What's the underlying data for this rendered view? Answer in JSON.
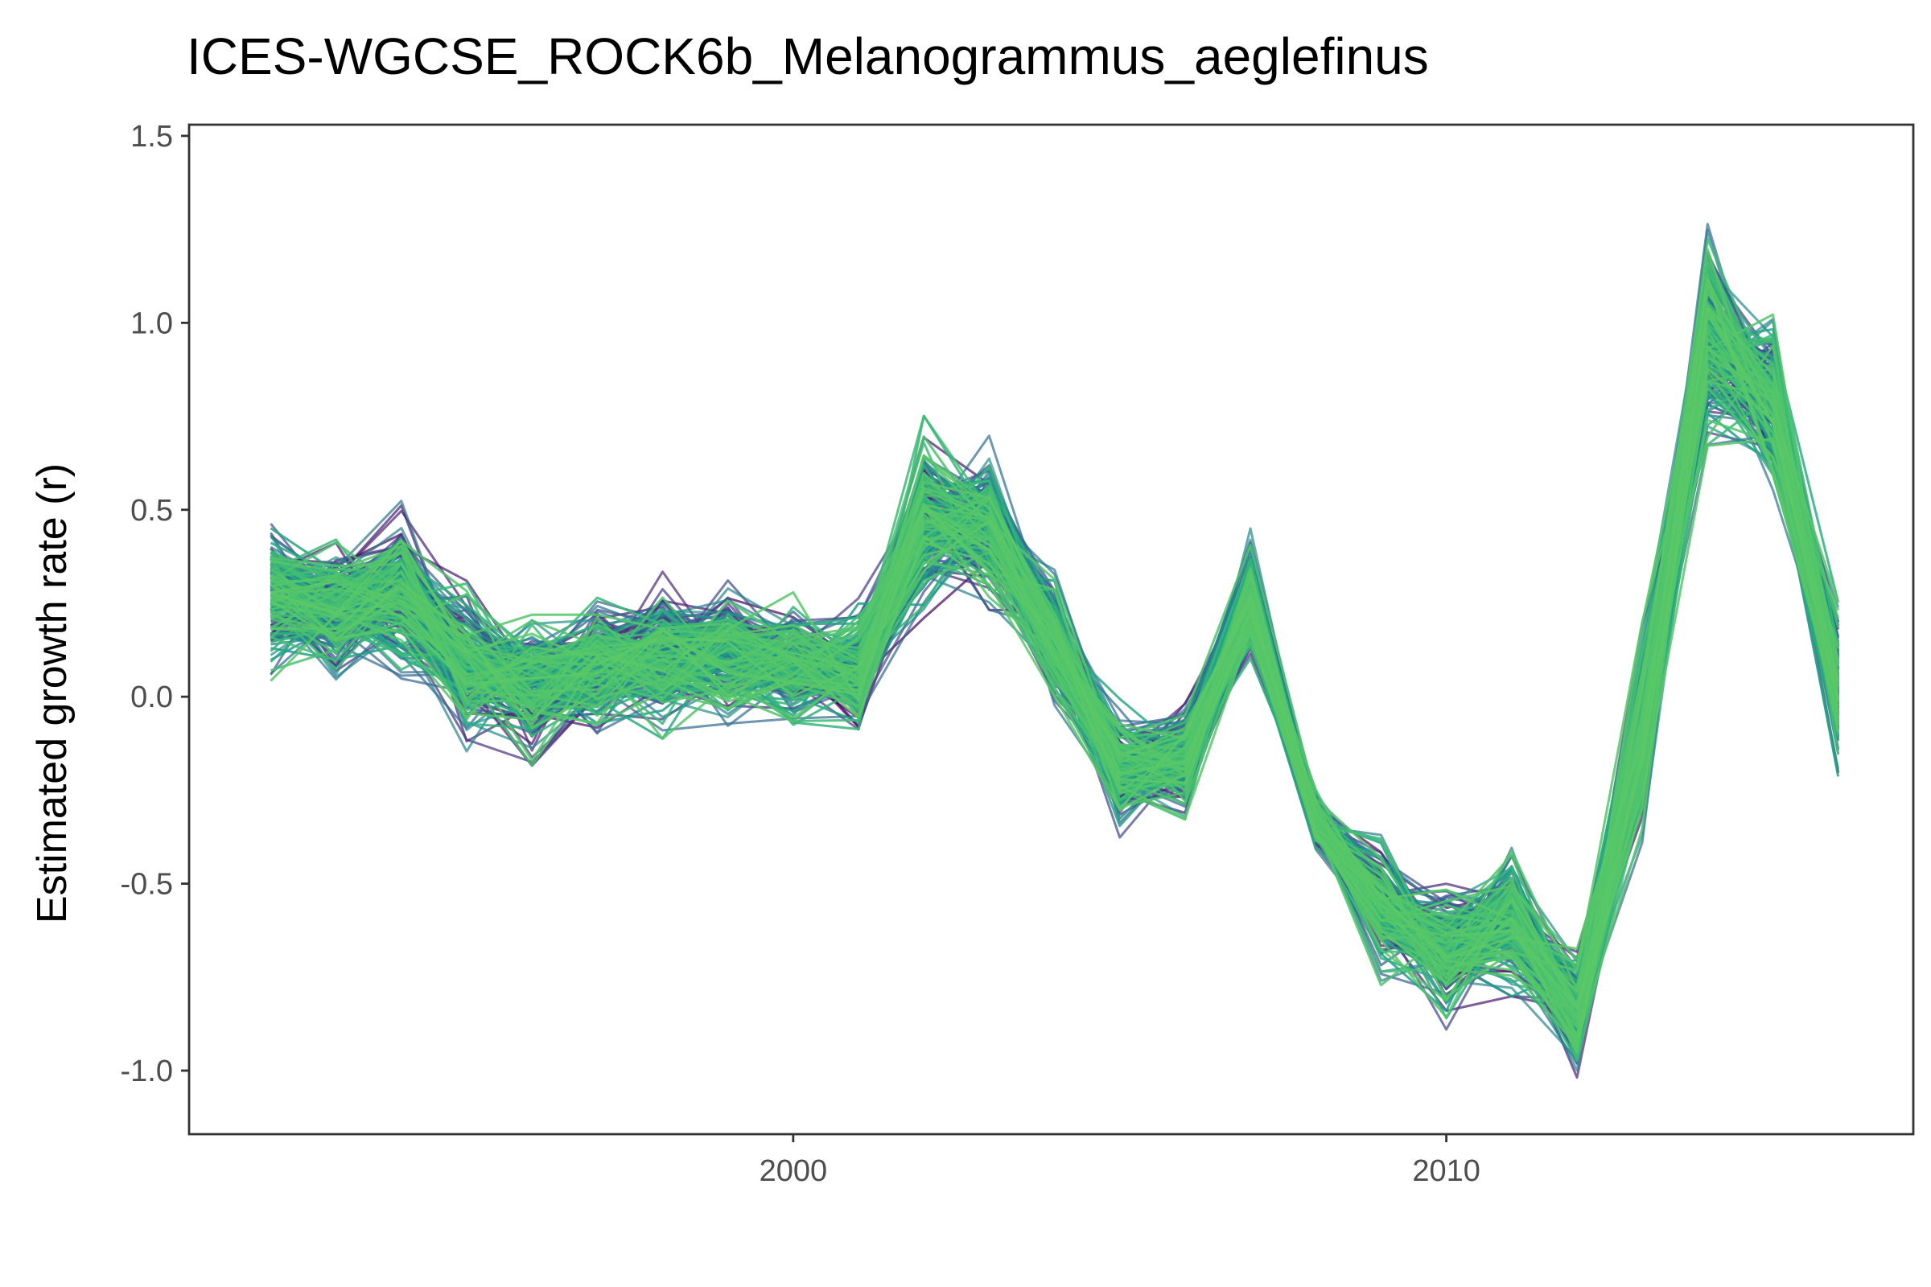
{
  "chart_data": {
    "type": "line",
    "title": "ICES-WGCSE_ROCK6b_Melanogrammus_aeglefinus",
    "xlabel": "",
    "ylabel": "Estimated growth rate (r)",
    "xlim": [
      1990.75,
      2017.15
    ],
    "ylim": [
      -1.17,
      1.53
    ],
    "x_ticks": [
      2000,
      2010
    ],
    "x_tick_labels": [
      "2000",
      "2010"
    ],
    "y_ticks": [
      -1.0,
      -0.5,
      0.0,
      0.5,
      1.0,
      1.5
    ],
    "y_tick_labels": [
      "-1.0",
      "-0.5",
      "0.0",
      "0.5",
      "1.0",
      "1.5"
    ],
    "grid": false,
    "legend": "none",
    "colormap": "viridis (dark purple to green)",
    "colors": [
      "#440154",
      "#482878",
      "#3e4a89",
      "#31688e",
      "#26828e",
      "#1f9e89",
      "#35b779",
      "#6ece58"
    ],
    "x": [
      1992,
      1993,
      1994,
      1995,
      1996,
      1997,
      1998,
      1999,
      2000,
      2001,
      2002,
      2003,
      2004,
      2005,
      2006,
      2007,
      2008,
      2009,
      2010,
      2011,
      2012,
      2013,
      2014,
      2015,
      2016
    ],
    "series_count": 1000,
    "median": [
      0.25,
      0.22,
      0.27,
      0.08,
      0.04,
      0.08,
      0.11,
      0.12,
      0.09,
      0.07,
      0.45,
      0.47,
      0.15,
      -0.2,
      -0.17,
      0.25,
      -0.33,
      -0.58,
      -0.68,
      -0.6,
      -0.86,
      -0.1,
      0.95,
      0.78,
      0.02
    ],
    "lower": [
      0.05,
      0.07,
      0.1,
      -0.15,
      -0.2,
      -0.14,
      -0.12,
      -0.12,
      -0.12,
      -0.17,
      0.23,
      0.2,
      -0.05,
      -0.35,
      -0.35,
      0.1,
      -0.42,
      -0.73,
      -0.92,
      -0.8,
      -1.05,
      -0.35,
      0.72,
      0.5,
      -0.25
    ],
    "upper": [
      0.55,
      0.47,
      0.6,
      0.33,
      0.27,
      0.27,
      0.35,
      0.33,
      0.3,
      0.25,
      0.83,
      0.69,
      0.38,
      0.04,
      0.02,
      0.5,
      -0.23,
      -0.3,
      -0.48,
      -0.37,
      -0.6,
      0.29,
      1.41,
      1.06,
      0.25
    ]
  }
}
